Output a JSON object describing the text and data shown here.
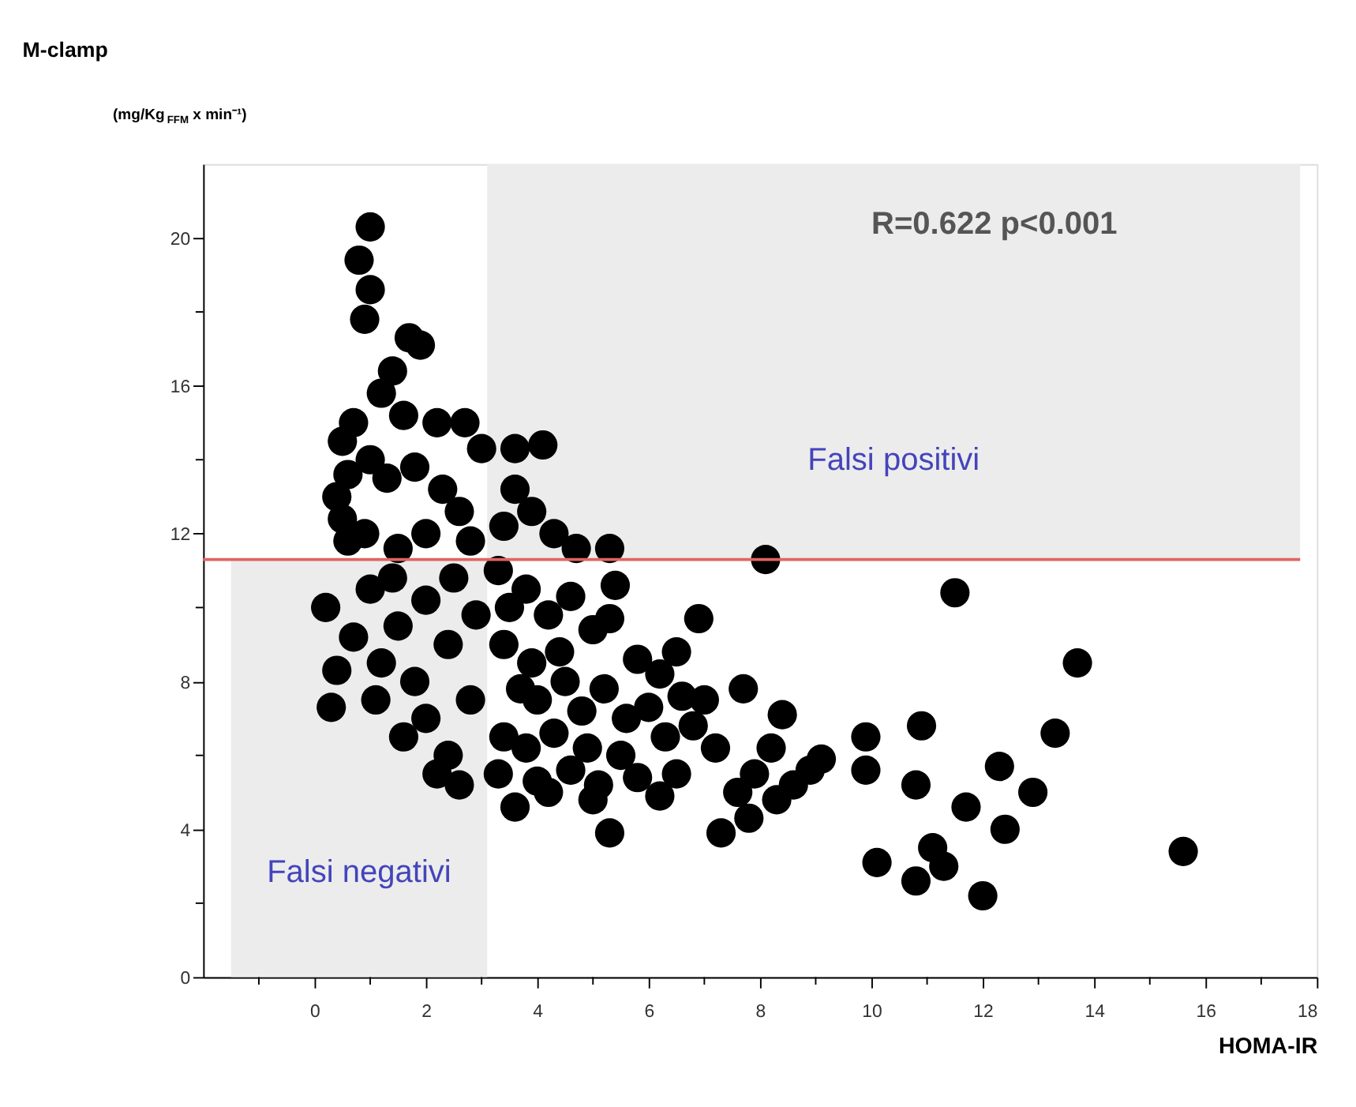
{
  "chart_data": {
    "type": "scatter",
    "title": "M-clamp",
    "ylabel": "(mg/Kg$_{FFM}$ x min⁻¹)",
    "xlabel": "HOMA-IR",
    "annotations": [
      "R=0.622  p<0.001"
    ],
    "xlim": [
      -2,
      18
    ],
    "ylim": [
      0,
      22
    ],
    "xticks": [
      {
        "value": -1,
        "label": null
      },
      0,
      {
        "value": 1,
        "label": null
      },
      2,
      {
        "value": 3,
        "label": null
      },
      4,
      {
        "value": 5,
        "label": null
      },
      6,
      {
        "value": 7,
        "label": null
      },
      8,
      {
        "value": 9,
        "label": null
      },
      10,
      {
        "value": 11,
        "label": null
      },
      12,
      {
        "value": 13,
        "label": null
      },
      14,
      {
        "value": 15,
        "label": null
      },
      16,
      {
        "value": 17,
        "label": null
      },
      18
    ],
    "yticks": [
      0,
      {
        "value": 2,
        "label": null
      },
      4,
      {
        "value": 6,
        "label": null
      },
      8,
      {
        "value": 10,
        "label": null
      },
      12,
      {
        "value": 14,
        "label": null
      },
      16,
      {
        "value": 18,
        "label": null
      },
      20
    ],
    "grid": false,
    "marker": "circle",
    "ref_lines": [
      {
        "axis": "y",
        "value": 11.3,
        "label": null,
        "color": "#e06464"
      }
    ],
    "bands": [
      {
        "axis": "x",
        "from": 3.1,
        "to": 17.7,
        "label": "Falsi positivi",
        "color": "#ececec"
      },
      {
        "axis": "x",
        "from": -1.5,
        "to": 3.1,
        "label": "Falsi negativi",
        "color": "#ececec"
      }
    ],
    "series": [
      {
        "color": "#000000",
        "x": [
          1.0,
          0.8,
          1.0,
          0.9,
          1.7,
          1.9,
          1.4,
          1.2,
          0.7,
          1.6,
          2.2,
          2.7,
          3.0,
          0.5,
          0.6,
          0.4,
          0.5,
          0.9,
          1.3,
          1.8,
          2.3,
          2.6,
          1.0,
          2.0,
          1.5,
          2.8,
          3.6,
          4.1,
          3.6,
          3.9,
          4.3,
          4.7,
          5.3,
          3.4,
          0.6,
          0.2,
          0.4,
          0.3,
          0.7,
          1.0,
          1.5,
          2.0,
          2.5,
          1.2,
          1.8,
          2.4,
          1.1,
          1.6,
          2.0,
          2.4,
          2.6,
          2.2,
          2.8,
          2.9,
          1.4,
          3.3,
          3.5,
          3.8,
          4.2,
          4.6,
          3.4,
          3.9,
          4.4,
          5.0,
          5.4,
          5.3,
          5.8,
          6.2,
          6.5,
          4.0,
          4.8,
          5.2,
          5.6,
          6.0,
          6.6,
          7.0,
          7.7,
          3.4,
          3.8,
          4.3,
          4.9,
          5.5,
          6.3,
          6.8,
          7.2,
          3.3,
          4.0,
          4.6,
          5.1,
          5.8,
          6.5,
          3.6,
          4.2,
          5.0,
          5.3,
          6.2,
          7.3,
          7.8,
          7.6,
          7.9,
          8.2,
          8.4,
          8.6,
          8.9,
          9.1,
          8.3,
          3.7,
          4.5,
          8.1,
          6.9,
          11.5,
          13.7,
          10.9,
          13.3,
          9.9,
          9.9,
          12.3,
          12.9,
          10.8,
          11.7,
          12.4,
          10.1,
          11.1,
          11.3,
          10.8,
          12.0,
          15.6
        ],
        "values": [
          20.3,
          19.4,
          18.6,
          17.8,
          17.3,
          17.1,
          16.4,
          15.8,
          15.0,
          15.2,
          15.0,
          15.0,
          14.3,
          14.5,
          13.6,
          13.0,
          12.4,
          12.0,
          13.5,
          13.8,
          13.2,
          12.6,
          14.0,
          12.0,
          11.6,
          11.8,
          14.3,
          14.4,
          13.2,
          12.6,
          12.0,
          11.6,
          11.6,
          12.2,
          11.8,
          10.0,
          8.3,
          7.3,
          9.2,
          10.5,
          9.5,
          10.2,
          10.8,
          8.5,
          8.0,
          9.0,
          7.5,
          6.5,
          7.0,
          6.0,
          5.2,
          5.5,
          7.5,
          9.8,
          10.8,
          11.0,
          10.0,
          10.5,
          9.8,
          10.3,
          9.0,
          8.5,
          8.8,
          9.4,
          10.6,
          9.7,
          8.6,
          8.2,
          8.8,
          7.5,
          7.2,
          7.8,
          7.0,
          7.3,
          7.6,
          7.5,
          7.8,
          6.5,
          6.2,
          6.6,
          6.2,
          6.0,
          6.5,
          6.8,
          6.2,
          5.5,
          5.3,
          5.6,
          5.2,
          5.4,
          5.5,
          4.6,
          5.0,
          4.8,
          3.9,
          4.9,
          3.9,
          4.3,
          5.0,
          5.5,
          6.2,
          7.1,
          5.2,
          5.6,
          5.9,
          4.8,
          7.8,
          8.0,
          11.3,
          9.7,
          10.4,
          8.5,
          6.8,
          6.6,
          6.5,
          5.6,
          5.7,
          5.0,
          5.2,
          4.6,
          4.0,
          3.1,
          3.5,
          3.0,
          2.6,
          2.2,
          3.4
        ]
      }
    ]
  }
}
